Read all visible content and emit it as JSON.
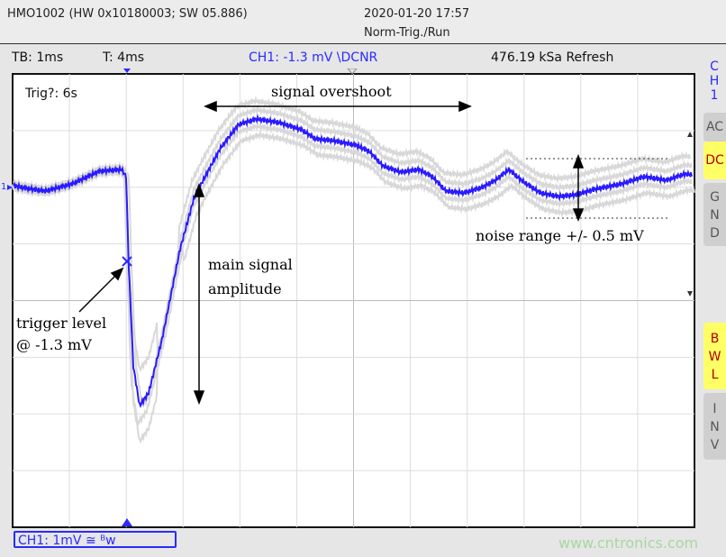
{
  "header": {
    "device": "HMO1002 (HW 0x10180003; SW 05.886)",
    "datetime": "2020-01-20 17:57",
    "mode": "Norm-Trig./Run"
  },
  "status": {
    "timebase": "TB: 1ms",
    "trigger_time": "T: 4ms",
    "channel": "CH1: -1.3 mV \\DCNR",
    "sample_rate": "476.19 kSa Refresh"
  },
  "side": {
    "channel": [
      "C",
      "H",
      "1"
    ],
    "ac": "AC",
    "dc": "DC",
    "gnd": [
      "G",
      "N",
      "D"
    ],
    "bwl": [
      "B",
      "W",
      "L"
    ],
    "inv": [
      "I",
      "N",
      "V"
    ]
  },
  "plot": {
    "trig_status": "Trig?: 6s",
    "ch_marker": "1",
    "trace_color": "#2a1aff",
    "ghost_color": "#d8d8d8"
  },
  "annotations": {
    "overshoot": "signal overshoot",
    "noise": "noise range +/- 0.5 mV",
    "amplitude_1": "main  signal",
    "amplitude_2": "amplitude",
    "trigger_1": "trigger  level",
    "trigger_2": "@ -1.3 mV"
  },
  "footer": {
    "scale": "CH1: 1mV ≅ ᴮᴡ",
    "watermark": "www.cntronics.com"
  }
}
